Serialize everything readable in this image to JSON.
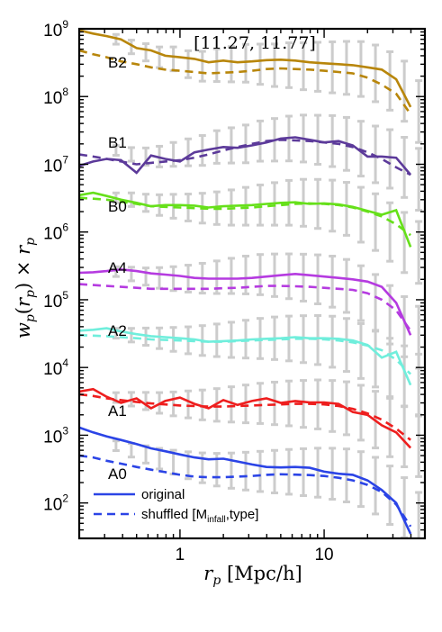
{
  "chart_data": {
    "type": "line",
    "title": "[11.27, 11.77]",
    "xlabel": "r_p [Mpc/h]",
    "ylabel": "w_p(r_p) × r_p",
    "xscale": "log",
    "yscale": "log",
    "xlim": [
      0.2,
      50
    ],
    "ylim": [
      30,
      1000000000
    ],
    "x_ticks": [
      {
        "value": 1,
        "label": "1"
      },
      {
        "value": 10,
        "label": "10"
      }
    ],
    "y_ticks": [
      {
        "value": 100,
        "base": "10",
        "exp": "2"
      },
      {
        "value": 1000,
        "base": "10",
        "exp": "3"
      },
      {
        "value": 10000,
        "base": "10",
        "exp": "4"
      },
      {
        "value": 100000,
        "base": "10",
        "exp": "5"
      },
      {
        "value": 1000000,
        "base": "10",
        "exp": "6"
      },
      {
        "value": 10000000,
        "base": "10",
        "exp": "7"
      },
      {
        "value": 100000000,
        "base": "10",
        "exp": "8"
      },
      {
        "value": 1000000000,
        "base": "10",
        "exp": "9"
      }
    ],
    "legend": {
      "position": "bottom-left",
      "entries": [
        {
          "style": "solid",
          "text": "original"
        },
        {
          "style": "dashed",
          "text_prefix": "shuffled [M",
          "text_sub": "infall",
          "text_suffix": ",type]"
        }
      ]
    },
    "x": [
      0.2,
      0.25,
      0.31,
      0.39,
      0.5,
      0.63,
      0.79,
      1.0,
      1.26,
      1.58,
      2.0,
      2.51,
      3.16,
      3.98,
      5.0,
      6.31,
      7.94,
      10.0,
      12.6,
      15.8,
      20.0,
      25.1,
      31.6,
      39.8
    ],
    "errorbar_x": [
      0.36,
      0.46,
      0.58,
      0.72,
      0.9,
      1.14,
      1.43,
      1.8,
      2.27,
      2.86,
      3.6,
      4.53,
      5.7,
      7.18,
      9.04,
      11.4,
      14.3,
      18.0,
      22.7,
      28.6,
      36.0,
      45.3
    ],
    "series": [
      {
        "name": "B2",
        "color": "#b8860b",
        "original": [
          950000000,
          850000000,
          780000000,
          700000000,
          520000000,
          480000000,
          400000000,
          380000000,
          360000000,
          320000000,
          340000000,
          320000000,
          330000000,
          345000000,
          350000000,
          340000000,
          320000000,
          310000000,
          300000000,
          290000000,
          270000000,
          250000000,
          180000000,
          70000000
        ],
        "shuffled": [
          480000000,
          420000000,
          380000000,
          330000000,
          300000000,
          270000000,
          250000000,
          240000000,
          230000000,
          220000000,
          225000000,
          230000000,
          240000000,
          255000000,
          260000000,
          255000000,
          250000000,
          240000000,
          230000000,
          220000000,
          190000000,
          150000000,
          110000000,
          55000000
        ],
        "error_center": [
          700000000,
          540000000,
          450000000,
          380000000,
          360000000,
          300000000,
          280000000,
          290000000,
          300000000,
          310000000,
          300000000,
          290000000,
          290000000,
          280000000,
          275000000,
          270000000,
          265000000,
          255000000,
          220000000,
          170000000,
          120000000,
          60000000
        ]
      },
      {
        "name": "B1",
        "color": "#5c3a9a",
        "original": [
          9500000,
          11000000,
          12000000,
          11500000,
          7500000,
          13500000,
          12000000,
          11000000,
          15000000,
          16500000,
          18000000,
          17500000,
          19000000,
          21000000,
          24000000,
          25000000,
          23000000,
          21000000,
          22000000,
          19000000,
          13000000,
          13000000,
          12500000,
          7000000
        ],
        "shuffled": [
          14000000,
          13000000,
          12000000,
          11000000,
          10000000,
          10500000,
          11000000,
          11500000,
          12500000,
          14000000,
          16000000,
          18000000,
          20000000,
          22000000,
          23000000,
          22500000,
          22000000,
          21000000,
          20000000,
          18000000,
          15000000,
          12000000,
          9000000,
          7000000
        ],
        "error_center": [
          16000000,
          14000000,
          13000000,
          13000000,
          14000000,
          15000000,
          16000000,
          18000000,
          19000000,
          20000000,
          22000000,
          23000000,
          24000000,
          24000000,
          23000000,
          22000000,
          20000000,
          17000000,
          14000000,
          12000000,
          9000000,
          6000000
        ]
      },
      {
        "name": "B0",
        "color": "#66e01a",
        "original": [
          3500000,
          3800000,
          3400000,
          3000000,
          2700000,
          2400000,
          2500000,
          2500000,
          2450000,
          2300000,
          2400000,
          2450000,
          2500000,
          2600000,
          2700000,
          2750000,
          2600000,
          2650000,
          2550000,
          2350000,
          2050000,
          1800000,
          2100000,
          600000
        ],
        "shuffled": [
          3200000,
          3100000,
          3000000,
          2800000,
          2600000,
          2400000,
          2350000,
          2300000,
          2250000,
          2200000,
          2200000,
          2250000,
          2300000,
          2400000,
          2500000,
          2600000,
          2650000,
          2600000,
          2500000,
          2300000,
          2000000,
          1700000,
          1300000,
          900000
        ],
        "error_center": [
          3200000,
          3000000,
          2700000,
          2500000,
          2400000,
          2300000,
          2250000,
          2250000,
          2300000,
          2400000,
          2500000,
          2600000,
          2700000,
          2700000,
          2600000,
          2450000,
          2200000,
          1800000,
          1400000,
          1000000,
          700000,
          500000
        ]
      },
      {
        "name": "A4",
        "color": "#b53be0",
        "original": [
          250000,
          255000,
          265000,
          280000,
          265000,
          245000,
          235000,
          225000,
          210000,
          205000,
          205000,
          205000,
          210000,
          220000,
          230000,
          240000,
          230000,
          220000,
          210000,
          200000,
          185000,
          155000,
          90000,
          30000
        ],
        "shuffled": [
          170000,
          165000,
          160000,
          155000,
          150000,
          145000,
          145000,
          145000,
          145000,
          145000,
          148000,
          150000,
          155000,
          160000,
          160000,
          158000,
          155000,
          150000,
          145000,
          140000,
          125000,
          100000,
          70000,
          35000
        ],
        "error_center": [
          260000,
          240000,
          220000,
          210000,
          205000,
          205000,
          208000,
          215000,
          225000,
          232000,
          235000,
          230000,
          222000,
          212000,
          200000,
          185000,
          160000,
          125000,
          90000,
          60000,
          40000,
          28000
        ]
      },
      {
        "name": "A2",
        "color": "#70eedc",
        "original": [
          35000,
          36000,
          38000,
          34000,
          31000,
          29000,
          28000,
          27000,
          26000,
          24000,
          24500,
          25000,
          26000,
          26500,
          27000,
          28000,
          27000,
          27000,
          26500,
          25000,
          21500,
          14000,
          17000,
          5500
        ],
        "shuffled": [
          30000,
          29500,
          29000,
          28000,
          27000,
          26000,
          25500,
          25000,
          24500,
          24000,
          24000,
          24500,
          25000,
          25500,
          26000,
          26500,
          26500,
          26000,
          25000,
          23500,
          21000,
          18000,
          13000,
          8000
        ],
        "error_center": [
          32000,
          30000,
          28500,
          27000,
          26000,
          25200,
          25000,
          25200,
          25600,
          26200,
          26800,
          27000,
          26800,
          26200,
          25400,
          24000,
          21500,
          17500,
          13500,
          10000,
          7500,
          5500
        ]
      },
      {
        "name": "A1",
        "color": "#ee1e1e",
        "original": [
          4400,
          4800,
          3700,
          3000,
          3500,
          2500,
          3200,
          3600,
          2900,
          2500,
          3300,
          2800,
          3200,
          3500,
          3000,
          3200,
          3050,
          3050,
          2900,
          2200,
          2000,
          1400,
          1100,
          650
        ],
        "shuffled": [
          4000,
          3800,
          3500,
          3300,
          3100,
          2950,
          2850,
          2750,
          2700,
          2650,
          2650,
          2700,
          2750,
          2800,
          2850,
          2900,
          2900,
          2850,
          2700,
          2450,
          2100,
          1700,
          1250,
          850
        ],
        "error_center": [
          3600,
          3400,
          3200,
          3000,
          2900,
          2850,
          2800,
          2800,
          2850,
          2900,
          2950,
          2950,
          2950,
          2900,
          2850,
          2700,
          2500,
          2150,
          1700,
          1300,
          950,
          700
        ]
      },
      {
        "name": "A0",
        "color": "#2b44e6",
        "original": [
          1300,
          1100,
          960,
          850,
          740,
          640,
          580,
          520,
          470,
          440,
          450,
          410,
          370,
          340,
          335,
          340,
          330,
          290,
          270,
          260,
          215,
          155,
          100,
          35
        ],
        "shuffled": [
          500,
          470,
          420,
          380,
          340,
          310,
          285,
          260,
          245,
          240,
          240,
          245,
          250,
          260,
          265,
          262,
          258,
          250,
          235,
          215,
          185,
          145,
          95,
          45
        ],
        "error_center": [
          700,
          600,
          520,
          450,
          400,
          360,
          330,
          310,
          300,
          295,
          292,
          290,
          288,
          285,
          280,
          270,
          255,
          225,
          180,
          130,
          85,
          50
        ]
      }
    ]
  }
}
